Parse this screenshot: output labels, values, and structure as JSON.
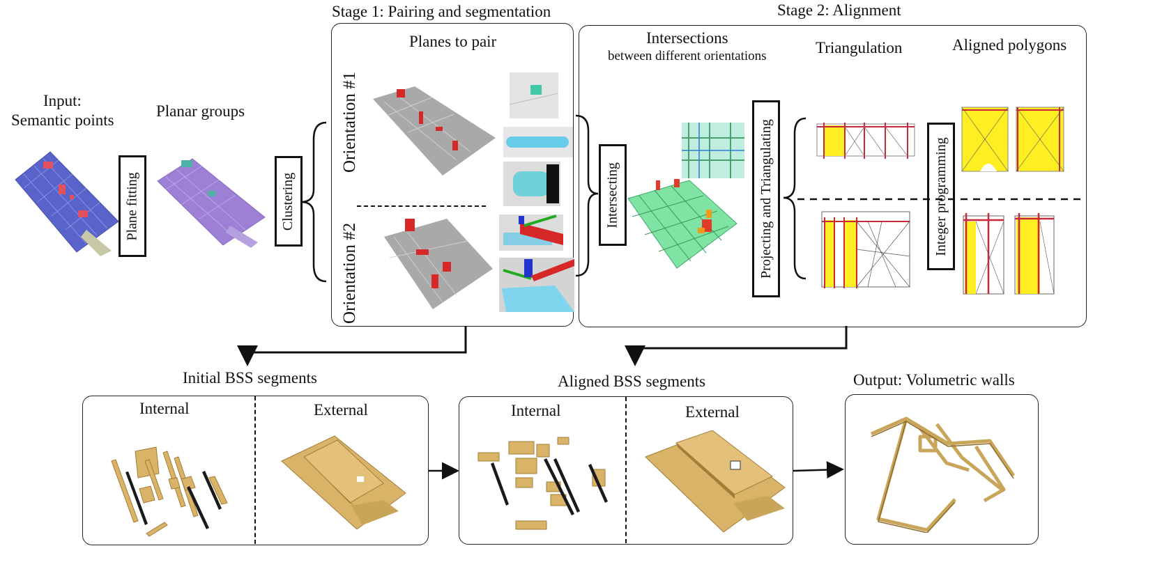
{
  "stage1": {
    "title": "Stage 1: Pairing and segmentation",
    "planes_title": "Planes to pair",
    "orient1": "Orientation #1",
    "orient2": "Orientation #2"
  },
  "stage2": {
    "title": "Stage 2: Alignment",
    "intersections_title": "Intersections",
    "intersections_sub": "between different orientations",
    "triangulation": "Triangulation",
    "aligned_polygons": "Aligned polygons"
  },
  "input": {
    "line1": "Input:",
    "line2": "Semantic points"
  },
  "planar_groups": "Planar groups",
  "steps": {
    "plane_fitting": "Plane fitting",
    "clustering": "Clustering",
    "intersecting": "Intersecting",
    "projecting": "Projecting and Triangulating",
    "integer_programming": "Integer programming"
  },
  "initial_bss": {
    "title": "Initial BSS segments",
    "internal": "Internal",
    "external": "External"
  },
  "aligned_bss": {
    "title": "Aligned BSS segments",
    "internal": "Internal",
    "external": "External"
  },
  "output": {
    "title": "Output: Volumetric walls"
  },
  "colors": {
    "wall": "#d9b367",
    "wall_dark": "#a47d37",
    "highlight": "#ffee22",
    "red": "#d62828",
    "cyan": "#7fd8f0",
    "gray": "#9a9a9a"
  }
}
